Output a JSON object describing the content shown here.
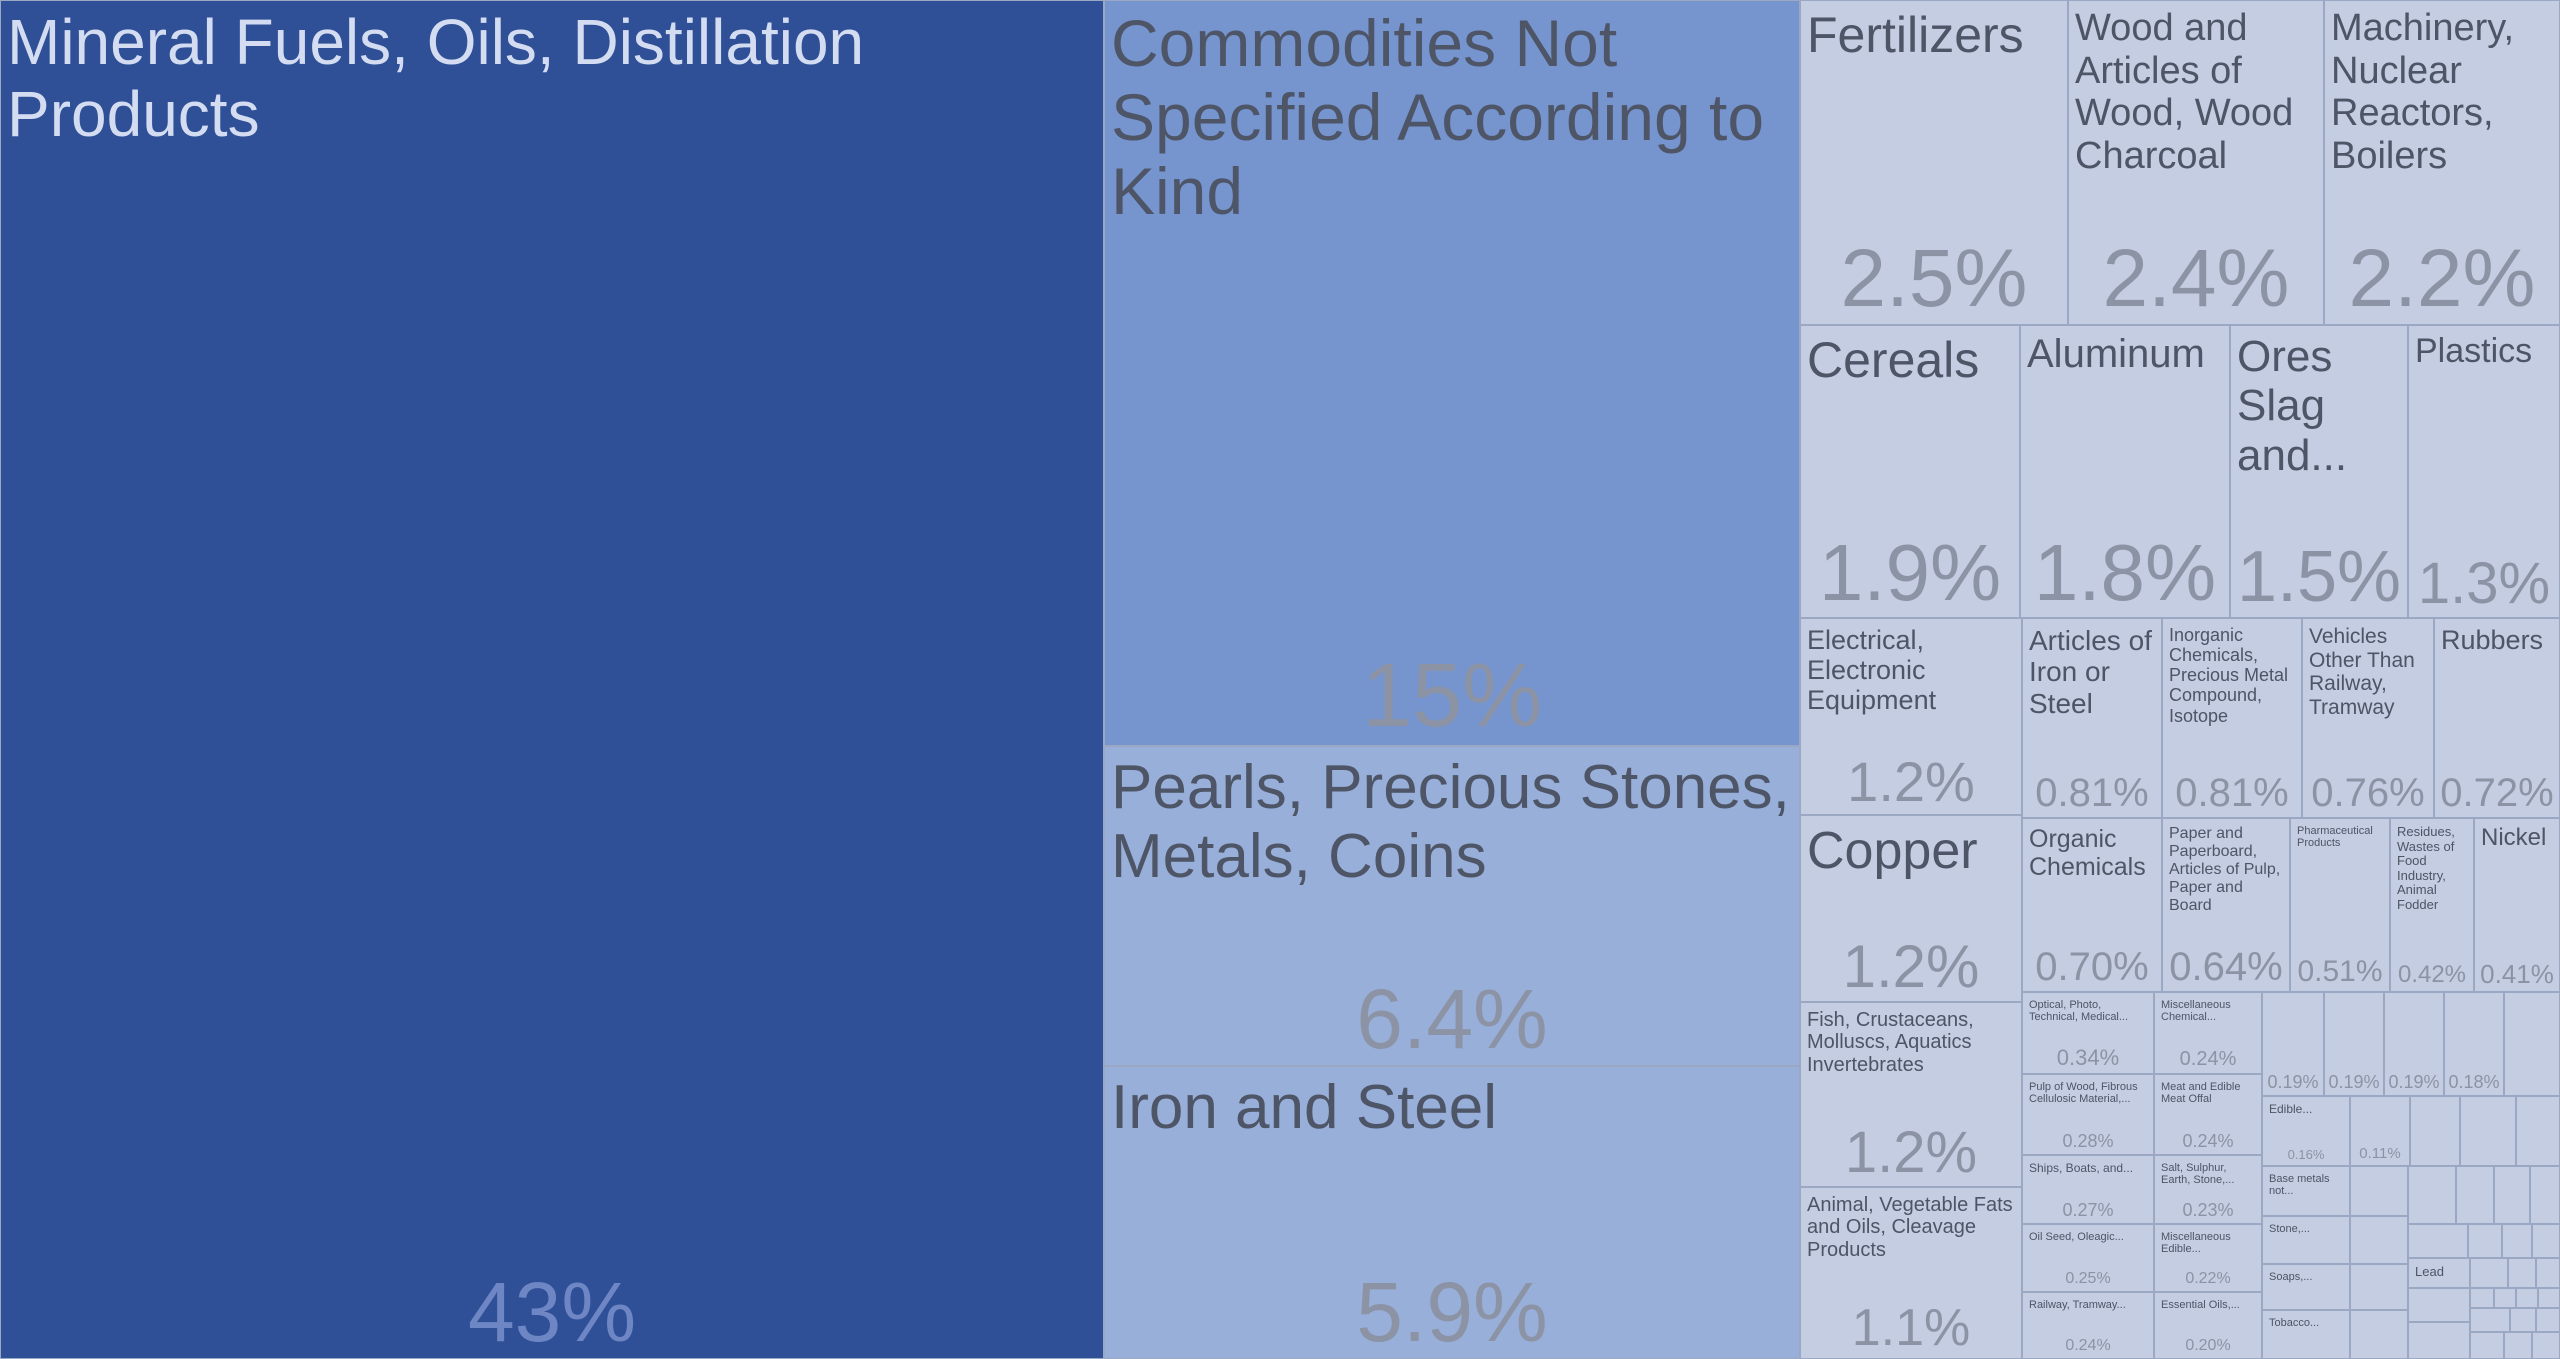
{
  "chart_data": {
    "type": "treemap",
    "items": [
      {
        "label": "Mineral Fuels, Oils, Distillation Products",
        "value_label": "43%",
        "share": 43
      },
      {
        "label": "Commodities Not Specified According to Kind",
        "value_label": "15%",
        "share": 15
      },
      {
        "label": "Pearls, Precious Stones, Metals, Coins",
        "value_label": "6.4%",
        "share": 6.4
      },
      {
        "label": "Iron and Steel",
        "value_label": "5.9%",
        "share": 5.9
      },
      {
        "label": "Fertilizers",
        "value_label": "2.5%",
        "share": 2.5
      },
      {
        "label": "Wood and Articles of Wood, Wood Charcoal",
        "value_label": "2.4%",
        "share": 2.4
      },
      {
        "label": "Machinery, Nuclear Reactors, Boilers",
        "value_label": "2.2%",
        "share": 2.2
      },
      {
        "label": "Cereals",
        "value_label": "1.9%",
        "share": 1.9
      },
      {
        "label": "Aluminum",
        "value_label": "1.8%",
        "share": 1.8
      },
      {
        "label": "Ores Slag and...",
        "value_label": "1.5%",
        "share": 1.5
      },
      {
        "label": "Plastics",
        "value_label": "1.3%",
        "share": 1.3
      },
      {
        "label": "Electrical, Electronic Equipment",
        "value_label": "1.2%",
        "share": 1.2
      },
      {
        "label": "Copper",
        "value_label": "1.2%",
        "share": 1.2
      },
      {
        "label": "Fish, Crustaceans, Molluscs, Aquatics Invertebrates",
        "value_label": "1.2%",
        "share": 1.2
      },
      {
        "label": "Animal, Vegetable Fats and Oils, Cleavage Products",
        "value_label": "1.1%",
        "share": 1.1
      },
      {
        "label": "Articles of Iron or Steel",
        "value_label": "0.81%",
        "share": 0.81
      },
      {
        "label": "Inorganic Chemicals, Precious Metal Compound, Isotope",
        "value_label": "0.81%",
        "share": 0.81
      },
      {
        "label": "Vehicles Other Than Railway, Tramway",
        "value_label": "0.76%",
        "share": 0.76
      },
      {
        "label": "Rubbers",
        "value_label": "0.72%",
        "share": 0.72
      },
      {
        "label": "Organic Chemicals",
        "value_label": "0.70%",
        "share": 0.7
      },
      {
        "label": "Paper and Paperboard, Articles of Pulp, Paper and Board",
        "value_label": "0.64%",
        "share": 0.64
      },
      {
        "label": "Pharmaceutical Products",
        "value_label": "0.51%",
        "share": 0.51
      },
      {
        "label": "Residues, Wastes of Food Industry, Animal Fodder",
        "value_label": "0.42%",
        "share": 0.42
      },
      {
        "label": "Nickel",
        "value_label": "0.41%",
        "share": 0.41
      },
      {
        "label": "Optical, Photo, Technical, Medical...",
        "value_label": "0.34%",
        "share": 0.34
      },
      {
        "label": "Miscellaneous Chemical...",
        "value_label": "0.24%",
        "share": 0.24
      },
      {
        "label": "Pulp of Wood, Fibrous Cellulosic Material,...",
        "value_label": "0.28%",
        "share": 0.28
      },
      {
        "label": "Meat and Edible Meat Offal",
        "value_label": "0.24%",
        "share": 0.24
      },
      {
        "label": "Ships, Boats, and...",
        "value_label": "0.27%",
        "share": 0.27
      },
      {
        "label": "Salt, Sulphur, Earth, Stone,...",
        "value_label": "0.23%",
        "share": 0.23
      },
      {
        "label": "Oil Seed, Oleagic...",
        "value_label": "0.25%",
        "share": 0.25
      },
      {
        "label": "Miscellaneous Edible...",
        "value_label": "0.22%",
        "share": 0.22
      },
      {
        "label": "Railway, Tramway...",
        "value_label": "0.24%",
        "share": 0.24
      },
      {
        "label": "Essential Oils,...",
        "value_label": "0.20%",
        "share": 0.2
      },
      {
        "label": "",
        "value_label": "0.19%",
        "share": 0.19
      },
      {
        "label": "",
        "value_label": "0.19%",
        "share": 0.19
      },
      {
        "label": "",
        "value_label": "0.19%",
        "share": 0.19
      },
      {
        "label": "",
        "value_label": "0.18%",
        "share": 0.18
      },
      {
        "label": "Edible...",
        "value_label": "0.16%",
        "share": 0.16
      },
      {
        "label": "",
        "value_label": "0.11%",
        "share": 0.11
      },
      {
        "label": "Base metals not...",
        "value_label": "",
        "share": null
      },
      {
        "label": "Stone,...",
        "value_label": "",
        "share": null
      },
      {
        "label": "Soaps,...",
        "value_label": "",
        "share": null
      },
      {
        "label": "Tobacco...",
        "value_label": "",
        "share": null
      },
      {
        "label": "Lead",
        "value_label": "",
        "share": null
      }
    ]
  },
  "colors": {
    "top": "#2f4f97",
    "second": "#7695cf",
    "third": "#98afda",
    "rest": "#c4cde2",
    "border": "#9aa8c4"
  }
}
